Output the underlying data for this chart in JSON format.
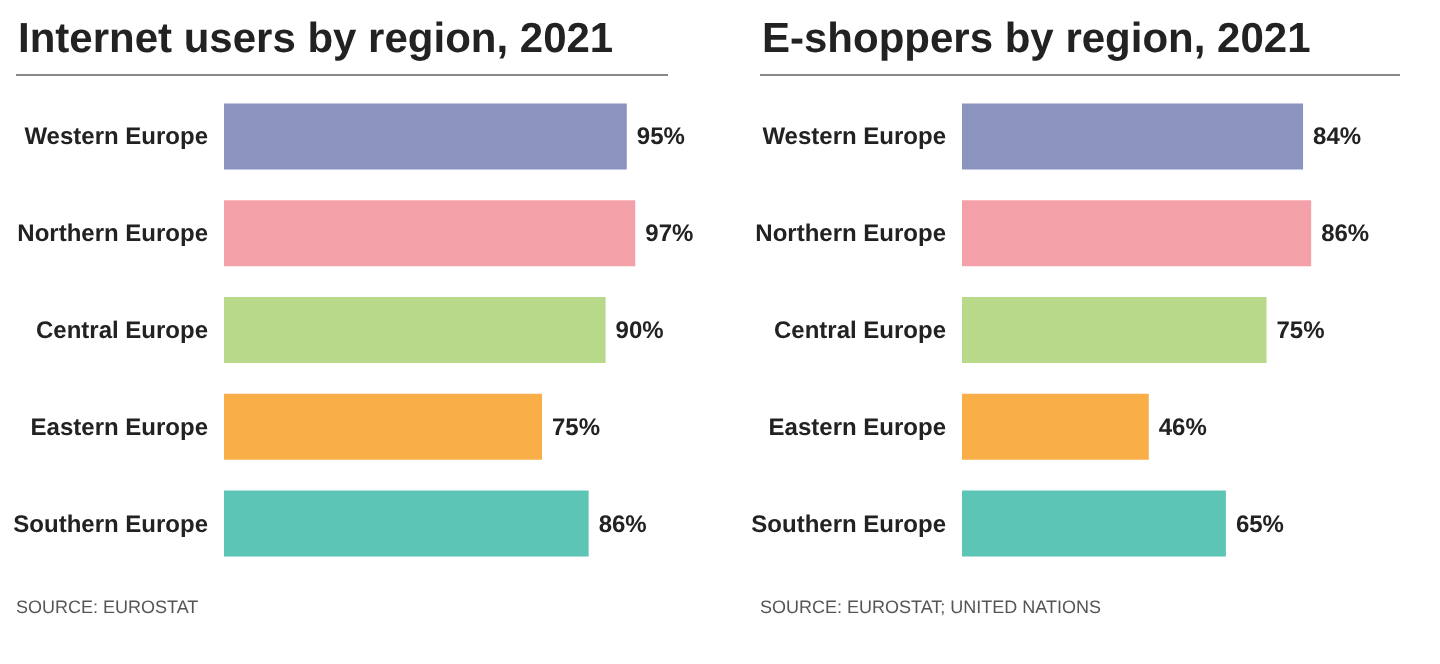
{
  "chart_data": [
    {
      "type": "bar",
      "orientation": "horizontal",
      "title": "Internet users by region, 2021",
      "categories": [
        "Western Europe",
        "Northern Europe",
        "Central Europe",
        "Eastern Europe",
        "Southern Europe"
      ],
      "values": [
        95,
        97,
        90,
        75,
        86
      ],
      "value_labels": [
        "95%",
        "97%",
        "90%",
        "75%",
        "86%"
      ],
      "colors": [
        "#8b93bf",
        "#f4a0a8",
        "#b8d98a",
        "#f9ae48",
        "#5cc5b5"
      ],
      "tick_labels": "y",
      "annotations": [
        "SOURCE: EUROSTAT"
      ]
    },
    {
      "type": "bar",
      "orientation": "horizontal",
      "title": "E-shoppers by region, 2021",
      "categories": [
        "Western Europe",
        "Northern Europe",
        "Central Europe",
        "Eastern Europe",
        "Southern Europe"
      ],
      "values": [
        84,
        86,
        75,
        46,
        65
      ],
      "value_labels": [
        "84%",
        "86%",
        "75%",
        "46%",
        "65%"
      ],
      "colors": [
        "#8b93bf",
        "#f4a0a8",
        "#b8d98a",
        "#f9ae48",
        "#5cc5b5"
      ],
      "tick_labels": "y",
      "annotations": [
        "SOURCE: EUROSTAT; UNITED NATIONS"
      ]
    }
  ]
}
